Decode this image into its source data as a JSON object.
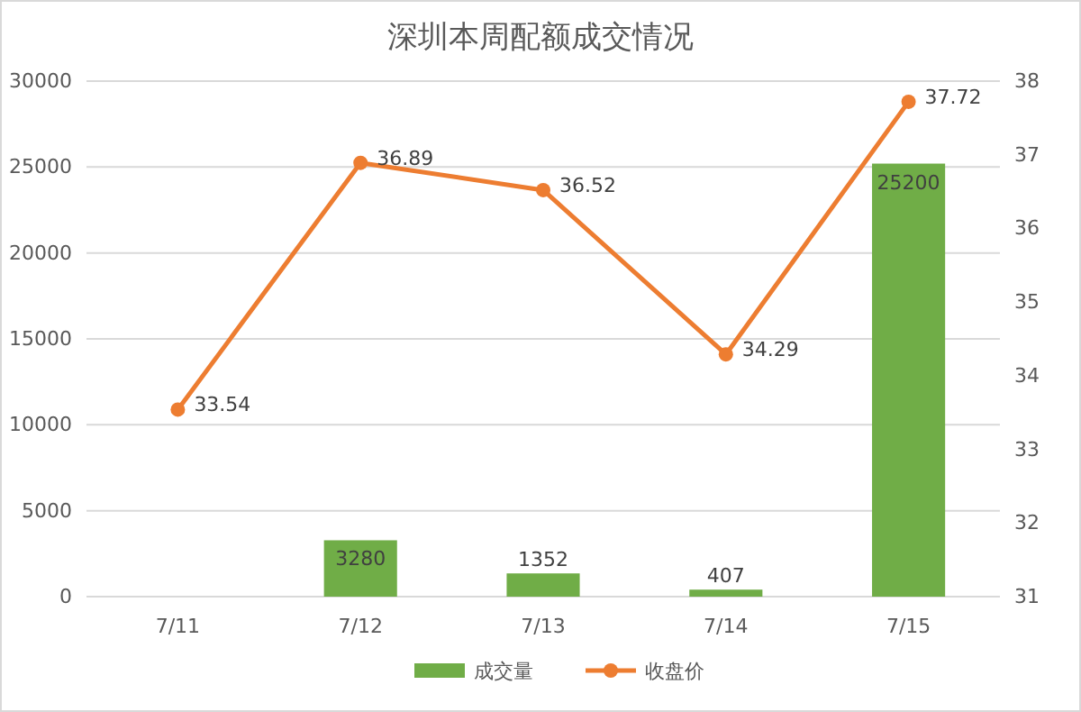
{
  "chart_data": {
    "type": "bar",
    "title": "深圳本周配额成交情况",
    "categories": [
      "7/11",
      "7/12",
      "7/13",
      "7/14",
      "7/15"
    ],
    "series": [
      {
        "name": "成交量",
        "color": "#70ad47",
        "values": [
          null,
          3280,
          1352,
          407,
          25200
        ]
      },
      {
        "name": "收盘价",
        "type": "line",
        "axis": "y2",
        "color": "#ed7d31",
        "values": [
          33.54,
          36.89,
          36.52,
          34.29,
          37.72
        ]
      }
    ],
    "ylim": [
      0,
      30000
    ],
    "yticks": [
      0,
      5000,
      10000,
      15000,
      20000,
      25000,
      30000
    ],
    "y2lim": [
      31,
      38
    ],
    "y2ticks": [
      31,
      32,
      33,
      34,
      35,
      36,
      37,
      38
    ],
    "grid": "y",
    "legend": "bottom",
    "marker": "circle",
    "line_style": "solid",
    "data_labels": true
  }
}
